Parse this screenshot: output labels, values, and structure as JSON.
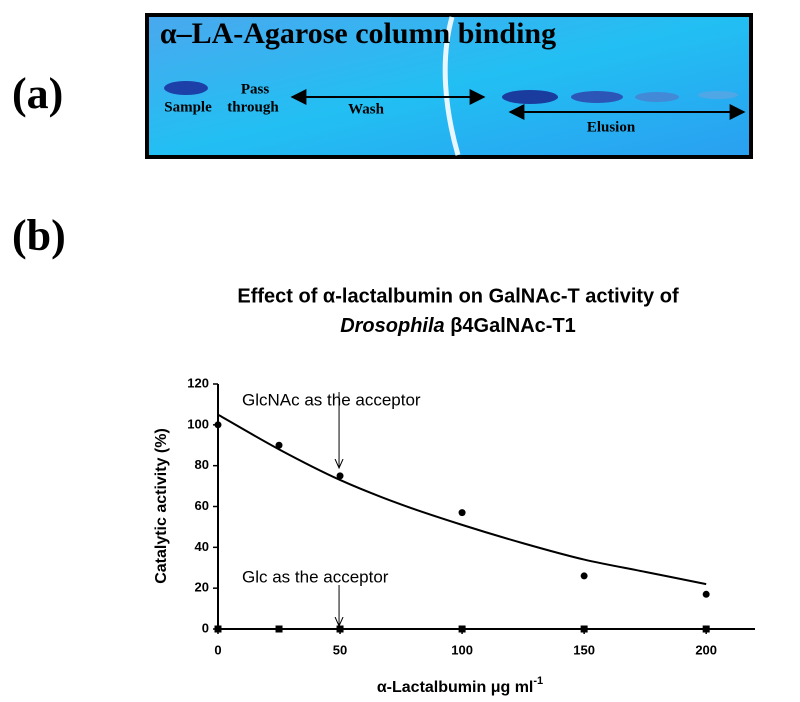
{
  "panels": {
    "a": "(a)",
    "b": "(b)"
  },
  "gel": {
    "title": "α–LA-Agarose column binding",
    "sample": "Sample",
    "pass": [
      "Pass",
      "through"
    ],
    "wash": "Wash",
    "elusion": "Elusion"
  },
  "chart_data": {
    "type": "scatter",
    "title": [
      "Effect of α-lactalbumin on GalNAc-T activity of",
      "Drosophila",
      " β4GalNAc-T1"
    ],
    "x_label": [
      "α-Lactalbumin μg ml",
      "-1"
    ],
    "y_label": "Catalytic activity (%)",
    "annotations": [
      "GlcNAc as the acceptor",
      "Glc as the acceptor"
    ],
    "xlim": [
      0,
      220
    ],
    "xticks": [
      0,
      50,
      100,
      150,
      200
    ],
    "ylim": [
      0,
      120
    ],
    "yticks": [
      0,
      20,
      40,
      60,
      80,
      100,
      120
    ],
    "grid": false,
    "series": [
      {
        "color": "#000000",
        "marker": "circle",
        "x": [
          0,
          25,
          50,
          100,
          150,
          200
        ],
        "values": [
          100,
          90,
          75,
          57,
          26,
          17
        ]
      },
      {
        "color": "#000000",
        "marker": "square",
        "x": [
          0,
          25,
          50,
          100,
          150,
          200
        ],
        "values": [
          0,
          0,
          0,
          0,
          0,
          0
        ]
      },
      {
        "color": "#000000",
        "marker": "none",
        "line": true,
        "x": [
          0,
          25,
          50,
          75,
          100,
          125,
          150,
          175,
          200
        ],
        "values": [
          105,
          88,
          73,
          61,
          51,
          42,
          34,
          28,
          22
        ]
      }
    ]
  }
}
